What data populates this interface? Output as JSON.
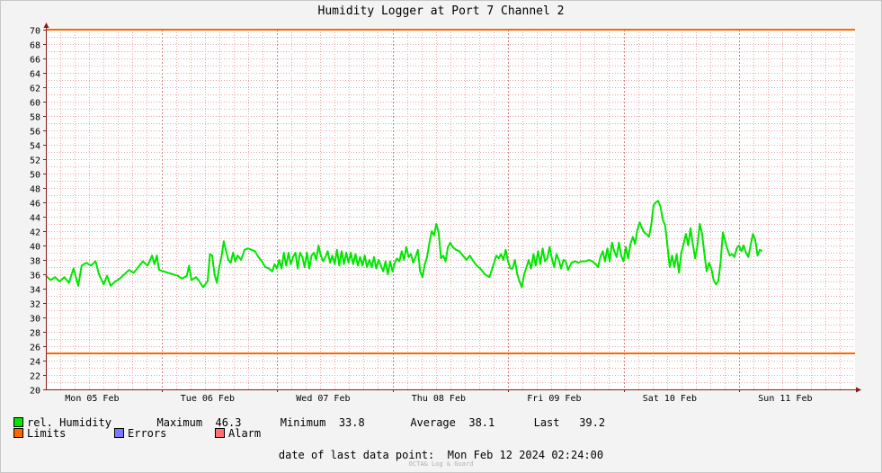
{
  "title": "Humidity Logger at Port 7 Channel 2",
  "chart_data": {
    "type": "line",
    "ylim": [
      20,
      70
    ],
    "yticks": [
      20,
      22,
      24,
      26,
      28,
      30,
      32,
      34,
      36,
      38,
      40,
      42,
      44,
      46,
      48,
      50,
      52,
      54,
      56,
      58,
      60,
      62,
      64,
      66,
      68,
      70
    ],
    "x_categories": [
      "Mon 05 Feb",
      "Tue 06 Feb",
      "Wed 07 Feb",
      "Thu 08 Feb",
      "Fri 09 Feb",
      "Sat 10 Feb",
      "Sun 11 Feb"
    ],
    "x_range_days": [
      0,
      7
    ],
    "limits": [
      70,
      25
    ],
    "grid": true,
    "colors": {
      "series": "#00e600",
      "limits": "#ff6600",
      "errors": "#7a7aff",
      "alarm": "#ff7070",
      "grid": "#e8a6a6",
      "axis": "#8b1a1a"
    },
    "series": [
      {
        "name": "rel. Humidity",
        "anchors": [
          [
            0.0,
            35.8
          ],
          [
            0.04,
            35.2
          ],
          [
            0.08,
            35.6
          ],
          [
            0.12,
            35.0
          ],
          [
            0.16,
            35.6
          ],
          [
            0.2,
            34.8
          ],
          [
            0.24,
            36.8
          ],
          [
            0.28,
            34.4
          ],
          [
            0.31,
            37.2
          ],
          [
            0.35,
            37.6
          ],
          [
            0.39,
            37.2
          ],
          [
            0.43,
            37.8
          ],
          [
            0.46,
            36.0
          ],
          [
            0.5,
            34.6
          ],
          [
            0.53,
            35.8
          ],
          [
            0.56,
            34.4
          ],
          [
            0.6,
            35.0
          ],
          [
            0.64,
            35.4
          ],
          [
            0.68,
            36.0
          ],
          [
            0.72,
            36.6
          ],
          [
            0.76,
            36.2
          ],
          [
            0.8,
            37.0
          ],
          [
            0.84,
            37.8
          ],
          [
            0.88,
            37.2
          ],
          [
            0.92,
            38.6
          ],
          [
            0.94,
            37.4
          ],
          [
            0.96,
            38.6
          ],
          [
            0.98,
            36.6
          ],
          [
            1.02,
            36.4
          ],
          [
            1.06,
            36.2
          ],
          [
            1.1,
            36.0
          ],
          [
            1.14,
            35.8
          ],
          [
            1.18,
            35.4
          ],
          [
            1.22,
            35.8
          ],
          [
            1.24,
            37.2
          ],
          [
            1.26,
            35.2
          ],
          [
            1.3,
            35.6
          ],
          [
            1.33,
            35.0
          ],
          [
            1.36,
            34.2
          ],
          [
            1.4,
            35.0
          ],
          [
            1.42,
            38.8
          ],
          [
            1.44,
            38.6
          ],
          [
            1.46,
            36.0
          ],
          [
            1.48,
            34.8
          ],
          [
            1.5,
            37.0
          ],
          [
            1.52,
            38.4
          ],
          [
            1.54,
            40.6
          ],
          [
            1.56,
            39.2
          ],
          [
            1.58,
            38.0
          ],
          [
            1.6,
            37.6
          ],
          [
            1.62,
            39.0
          ],
          [
            1.64,
            37.8
          ],
          [
            1.66,
            38.6
          ],
          [
            1.69,
            38.0
          ],
          [
            1.72,
            39.4
          ],
          [
            1.75,
            39.6
          ],
          [
            1.78,
            39.4
          ],
          [
            1.81,
            39.2
          ],
          [
            1.84,
            38.4
          ],
          [
            1.87,
            37.8
          ],
          [
            1.9,
            37.0
          ],
          [
            1.93,
            36.8
          ],
          [
            1.96,
            36.4
          ],
          [
            1.98,
            37.4
          ],
          [
            2.0,
            36.8
          ],
          [
            2.02,
            38.0
          ],
          [
            2.04,
            36.8
          ],
          [
            2.06,
            39.0
          ],
          [
            2.08,
            37.2
          ],
          [
            2.1,
            39.0
          ],
          [
            2.12,
            37.4
          ],
          [
            2.14,
            38.4
          ],
          [
            2.16,
            39.0
          ],
          [
            2.18,
            36.8
          ],
          [
            2.2,
            39.0
          ],
          [
            2.22,
            38.4
          ],
          [
            2.24,
            37.0
          ],
          [
            2.26,
            39.0
          ],
          [
            2.28,
            36.8
          ],
          [
            2.3,
            38.6
          ],
          [
            2.32,
            39.0
          ],
          [
            2.34,
            38.0
          ],
          [
            2.36,
            40.0
          ],
          [
            2.38,
            38.6
          ],
          [
            2.4,
            37.8
          ],
          [
            2.42,
            38.4
          ],
          [
            2.44,
            39.2
          ],
          [
            2.46,
            37.6
          ],
          [
            2.48,
            38.6
          ],
          [
            2.5,
            37.4
          ],
          [
            2.52,
            39.4
          ],
          [
            2.54,
            37.2
          ],
          [
            2.56,
            39.2
          ],
          [
            2.58,
            37.4
          ],
          [
            2.6,
            39.0
          ],
          [
            2.62,
            37.6
          ],
          [
            2.64,
            39.0
          ],
          [
            2.66,
            37.4
          ],
          [
            2.68,
            38.8
          ],
          [
            2.7,
            37.2
          ],
          [
            2.72,
            38.4
          ],
          [
            2.74,
            37.2
          ],
          [
            2.76,
            38.6
          ],
          [
            2.78,
            37.0
          ],
          [
            2.8,
            38.0
          ],
          [
            2.82,
            37.0
          ],
          [
            2.84,
            38.4
          ],
          [
            2.86,
            36.8
          ],
          [
            2.88,
            38.0
          ],
          [
            2.9,
            37.2
          ],
          [
            2.92,
            36.4
          ],
          [
            2.94,
            37.8
          ],
          [
            2.96,
            36.0
          ],
          [
            2.98,
            37.8
          ],
          [
            3.0,
            36.4
          ],
          [
            3.02,
            37.6
          ],
          [
            3.04,
            38.2
          ],
          [
            3.06,
            37.8
          ],
          [
            3.08,
            39.2
          ],
          [
            3.1,
            38.0
          ],
          [
            3.12,
            39.8
          ],
          [
            3.14,
            38.4
          ],
          [
            3.16,
            38.8
          ],
          [
            3.18,
            37.6
          ],
          [
            3.2,
            38.4
          ],
          [
            3.22,
            39.4
          ],
          [
            3.24,
            36.4
          ],
          [
            3.26,
            35.6
          ],
          [
            3.28,
            37.4
          ],
          [
            3.3,
            38.4
          ],
          [
            3.32,
            40.4
          ],
          [
            3.34,
            42.0
          ],
          [
            3.36,
            41.4
          ],
          [
            3.38,
            43.0
          ],
          [
            3.4,
            41.8
          ],
          [
            3.42,
            38.2
          ],
          [
            3.44,
            38.6
          ],
          [
            3.46,
            37.8
          ],
          [
            3.48,
            39.8
          ],
          [
            3.5,
            40.4
          ],
          [
            3.52,
            39.8
          ],
          [
            3.55,
            39.4
          ],
          [
            3.58,
            39.2
          ],
          [
            3.61,
            38.6
          ],
          [
            3.64,
            38.0
          ],
          [
            3.67,
            38.6
          ],
          [
            3.7,
            37.8
          ],
          [
            3.73,
            37.2
          ],
          [
            3.76,
            36.8
          ],
          [
            3.8,
            36.0
          ],
          [
            3.84,
            35.6
          ],
          [
            3.88,
            37.6
          ],
          [
            3.9,
            38.6
          ],
          [
            3.92,
            38.2
          ],
          [
            3.94,
            38.8
          ],
          [
            3.96,
            38.0
          ],
          [
            3.98,
            39.4
          ],
          [
            4.0,
            37.8
          ],
          [
            4.02,
            36.8
          ],
          [
            4.04,
            36.8
          ],
          [
            4.06,
            38.0
          ],
          [
            4.08,
            36.0
          ],
          [
            4.1,
            35.0
          ],
          [
            4.12,
            34.2
          ],
          [
            4.14,
            36.0
          ],
          [
            4.16,
            37.0
          ],
          [
            4.18,
            38.0
          ],
          [
            4.2,
            36.8
          ],
          [
            4.22,
            38.8
          ],
          [
            4.24,
            37.2
          ],
          [
            4.26,
            39.2
          ],
          [
            4.28,
            37.4
          ],
          [
            4.3,
            39.6
          ],
          [
            4.32,
            37.8
          ],
          [
            4.34,
            38.2
          ],
          [
            4.36,
            39.8
          ],
          [
            4.38,
            38.2
          ],
          [
            4.4,
            37.0
          ],
          [
            4.42,
            38.8
          ],
          [
            4.44,
            38.0
          ],
          [
            4.46,
            36.8
          ],
          [
            4.48,
            38.0
          ],
          [
            4.5,
            37.8
          ],
          [
            4.52,
            36.6
          ],
          [
            4.55,
            37.6
          ],
          [
            4.58,
            37.8
          ],
          [
            4.61,
            37.6
          ],
          [
            4.64,
            37.8
          ],
          [
            4.67,
            37.8
          ],
          [
            4.7,
            38.0
          ],
          [
            4.73,
            37.8
          ],
          [
            4.76,
            37.4
          ],
          [
            4.78,
            37.0
          ],
          [
            4.8,
            38.4
          ],
          [
            4.82,
            39.2
          ],
          [
            4.84,
            37.8
          ],
          [
            4.86,
            39.6
          ],
          [
            4.88,
            37.8
          ],
          [
            4.9,
            40.4
          ],
          [
            4.92,
            39.2
          ],
          [
            4.94,
            38.4
          ],
          [
            4.96,
            40.4
          ],
          [
            4.98,
            38.6
          ],
          [
            5.0,
            37.8
          ],
          [
            5.02,
            39.8
          ],
          [
            5.04,
            38.2
          ],
          [
            5.06,
            40.2
          ],
          [
            5.08,
            41.2
          ],
          [
            5.1,
            40.2
          ],
          [
            5.12,
            42.2
          ],
          [
            5.14,
            43.2
          ],
          [
            5.16,
            42.4
          ],
          [
            5.18,
            41.8
          ],
          [
            5.2,
            41.6
          ],
          [
            5.22,
            41.2
          ],
          [
            5.24,
            42.8
          ],
          [
            5.26,
            45.6
          ],
          [
            5.28,
            46.0
          ],
          [
            5.3,
            46.2
          ],
          [
            5.32,
            45.4
          ],
          [
            5.34,
            43.6
          ],
          [
            5.36,
            42.8
          ],
          [
            5.38,
            40.0
          ],
          [
            5.4,
            37.0
          ],
          [
            5.42,
            38.6
          ],
          [
            5.44,
            37.0
          ],
          [
            5.46,
            38.8
          ],
          [
            5.48,
            36.2
          ],
          [
            5.5,
            39.0
          ],
          [
            5.52,
            40.2
          ],
          [
            5.54,
            41.6
          ],
          [
            5.56,
            40.0
          ],
          [
            5.58,
            42.4
          ],
          [
            5.6,
            40.2
          ],
          [
            5.62,
            38.2
          ],
          [
            5.64,
            40.0
          ],
          [
            5.66,
            43.0
          ],
          [
            5.68,
            41.6
          ],
          [
            5.7,
            38.8
          ],
          [
            5.72,
            36.4
          ],
          [
            5.74,
            37.6
          ],
          [
            5.76,
            36.8
          ],
          [
            5.78,
            35.2
          ],
          [
            5.8,
            34.6
          ],
          [
            5.82,
            35.0
          ],
          [
            5.84,
            37.6
          ],
          [
            5.86,
            41.8
          ],
          [
            5.88,
            40.6
          ],
          [
            5.9,
            39.4
          ],
          [
            5.92,
            38.6
          ],
          [
            5.94,
            38.8
          ],
          [
            5.96,
            38.4
          ],
          [
            5.98,
            39.6
          ],
          [
            6.0,
            40.0
          ],
          [
            6.02,
            39.2
          ],
          [
            6.04,
            40.0
          ],
          [
            6.06,
            39.0
          ],
          [
            6.08,
            38.4
          ],
          [
            6.1,
            40.0
          ],
          [
            6.12,
            41.6
          ],
          [
            6.14,
            40.8
          ],
          [
            6.16,
            38.6
          ],
          [
            6.18,
            39.4
          ],
          [
            6.2,
            39.2
          ]
        ]
      }
    ]
  },
  "legend": {
    "series_label": "rel. Humidity",
    "max_label": "Maximum",
    "max_value": "46.3",
    "min_label": "Minimum",
    "min_value": "33.8",
    "avg_label": "Average",
    "avg_value": "38.1",
    "last_label": "Last",
    "last_value": "39.2",
    "limits_label": "Limits",
    "errors_label": "Errors",
    "alarm_label": "Alarm"
  },
  "last_data_point_label": "date of last data point:",
  "last_data_point_value": "Mon Feb 12 2024 02:24:00",
  "credit": "OCTA& Log & Guard"
}
